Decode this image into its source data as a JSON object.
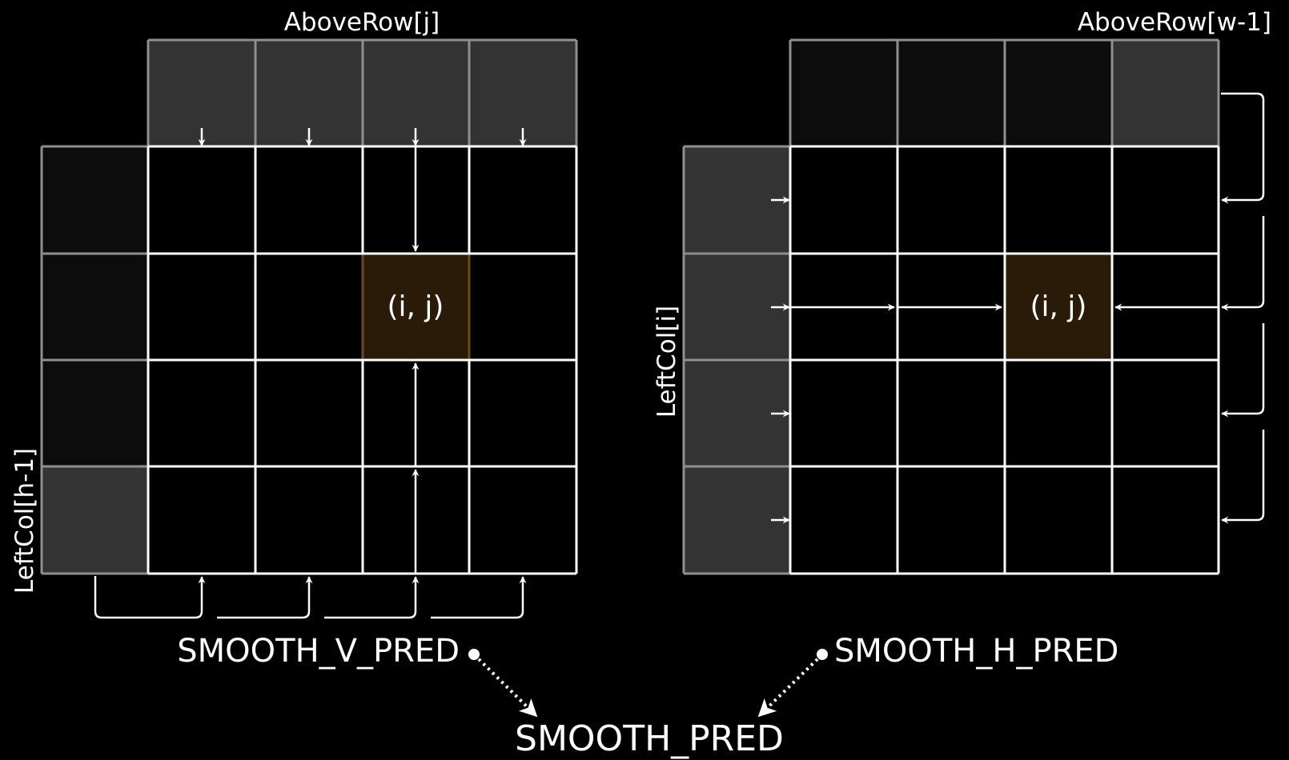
{
  "left_diagram": {
    "top_label": "AboveRow[j]",
    "side_label": "LeftCol[h-1]",
    "cell_label": "(i, j)",
    "mode_label": "SMOOTH_V_PRED"
  },
  "right_diagram": {
    "top_label": "AboveRow[w-1]",
    "side_label": "LeftCol[i]",
    "cell_label": "(i, j)",
    "mode_label": "SMOOTH_H_PRED"
  },
  "combined_label": "SMOOTH_PRED",
  "colors": {
    "background": "#000000",
    "reference_cell": "#333333",
    "reference_cell_dark": "#0c0c0c",
    "target_cell": "#2a1a08",
    "target_border": "#6b4a1e",
    "grid": "#ffffff",
    "reference_border": "#8f8f8f"
  }
}
